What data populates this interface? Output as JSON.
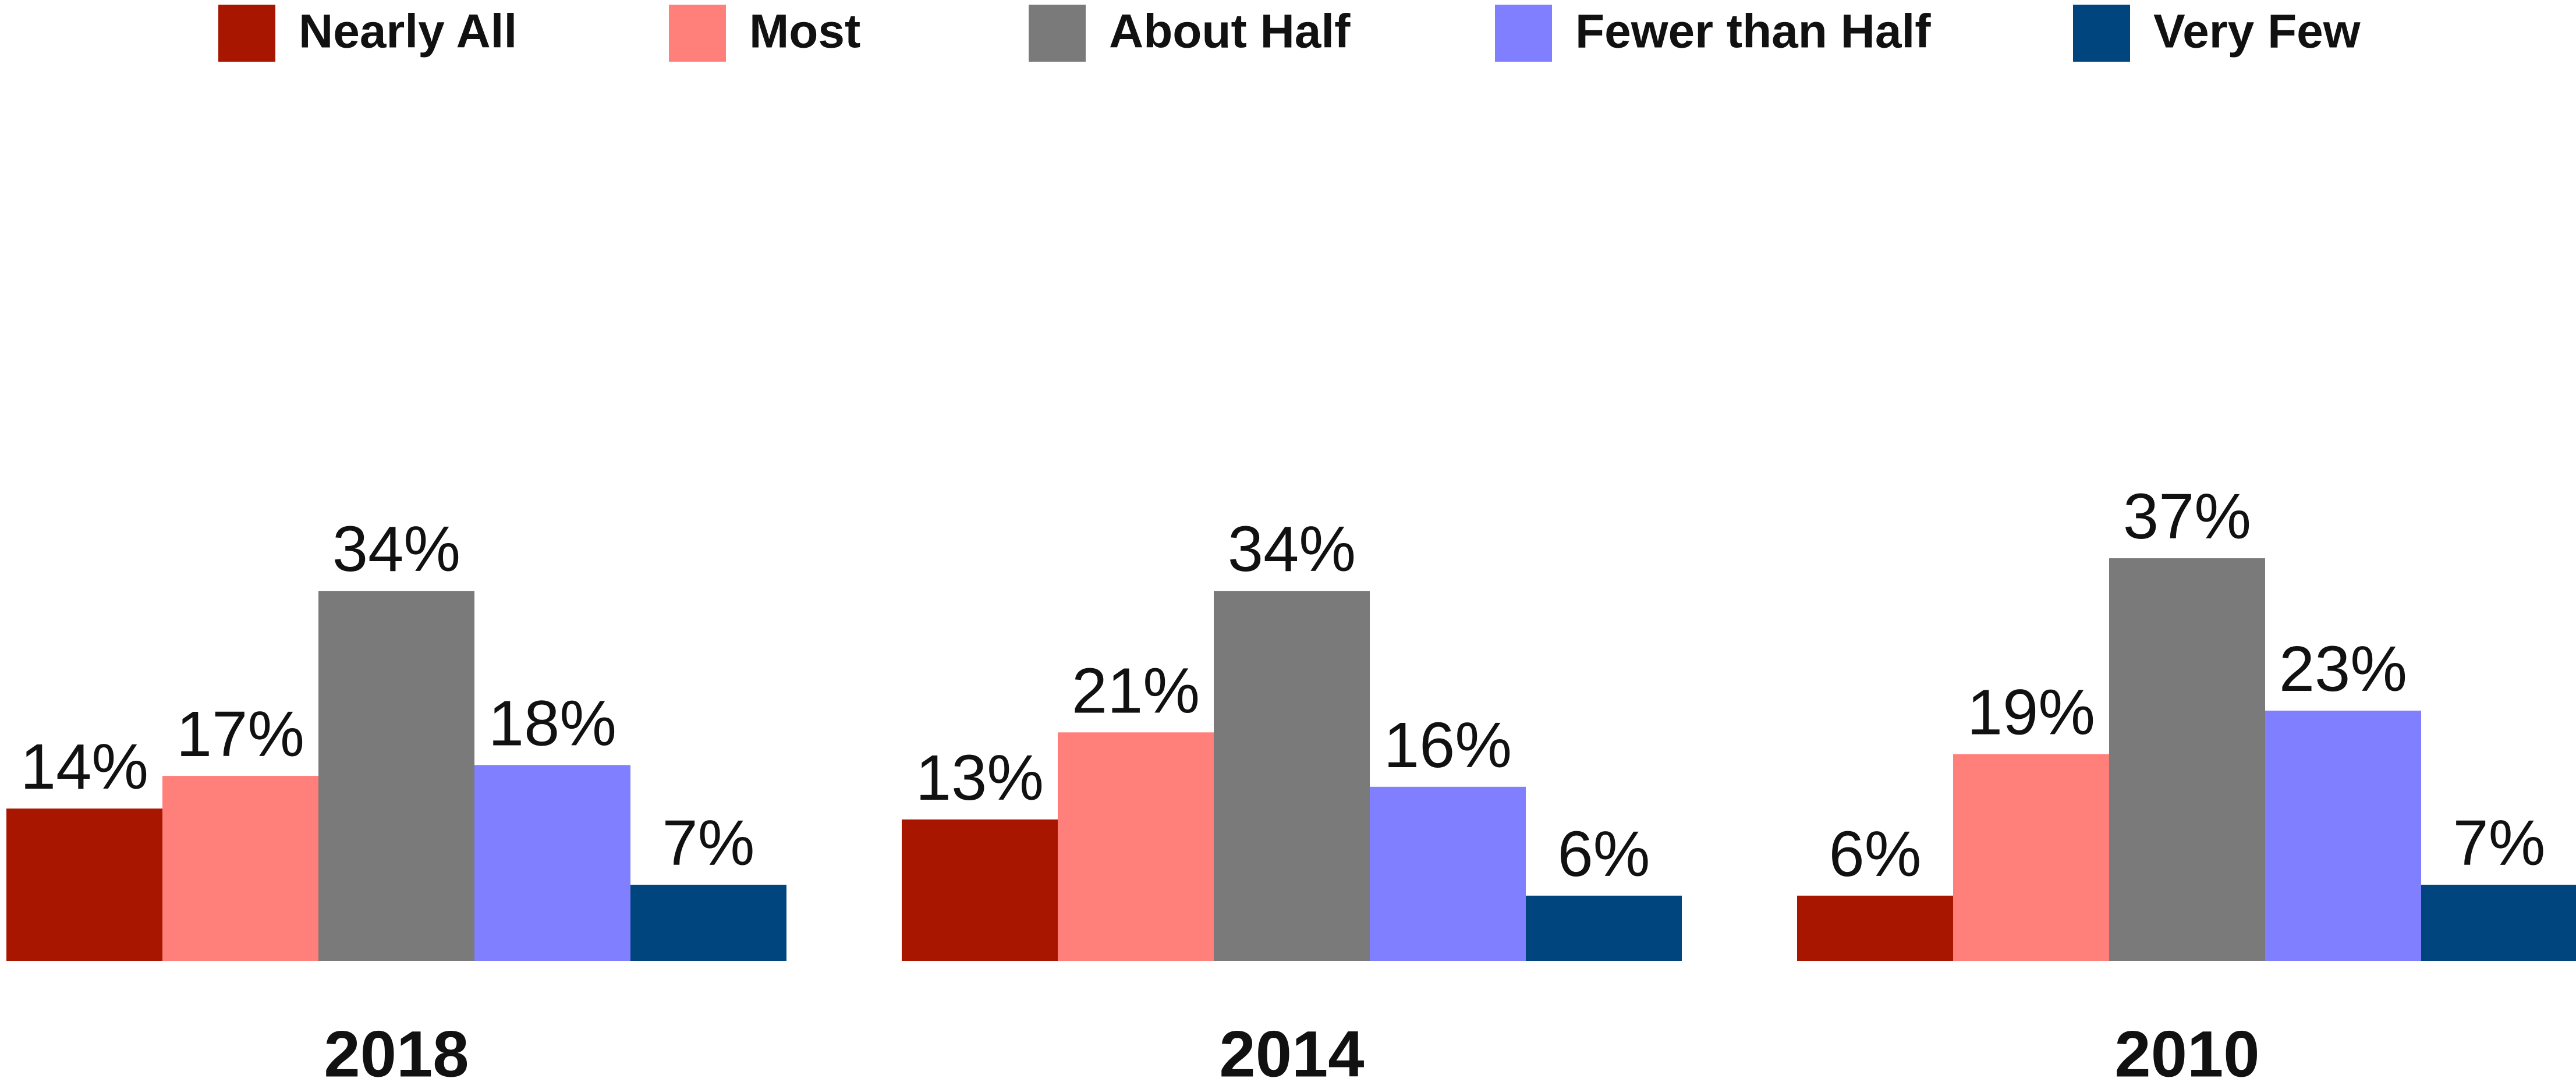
{
  "chart_data": {
    "type": "bar",
    "categories": [
      "2018",
      "2014",
      "2010"
    ],
    "series": [
      {
        "name": "Nearly All",
        "color": "#a81600",
        "values": [
          14,
          13,
          6
        ],
        "value_labels": [
          "14%",
          "13%",
          "6%"
        ]
      },
      {
        "name": "Most",
        "color": "#ff7f7b",
        "values": [
          17,
          21,
          19
        ],
        "value_labels": [
          "17%",
          "21%",
          "19%"
        ]
      },
      {
        "name": "About Half",
        "color": "#7a7a7a",
        "values": [
          34,
          34,
          37
        ],
        "value_labels": [
          "34%",
          "34%",
          "37%"
        ]
      },
      {
        "name": "Fewer than Half",
        "color": "#7f7fff",
        "values": [
          18,
          16,
          23
        ],
        "value_labels": [
          "18%",
          "16%",
          "23%"
        ]
      },
      {
        "name": "Very Few",
        "color": "#00457d",
        "values": [
          7,
          6,
          7
        ],
        "value_labels": [
          "7%",
          "6%",
          "7%"
        ]
      }
    ],
    "legend": "top"
  }
}
